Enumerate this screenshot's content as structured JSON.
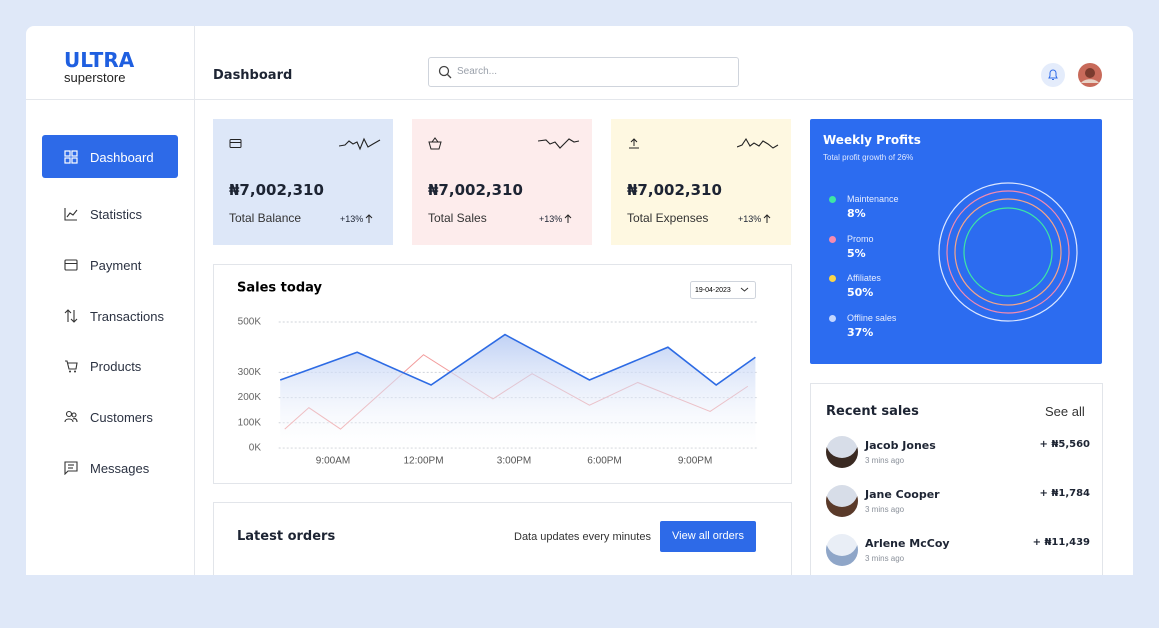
{
  "sidebar": {
    "brand": "ULTRA",
    "tagline": "superstore",
    "nav": [
      "Dashboard",
      "Statistics",
      "Payment",
      "Transactions",
      "Products",
      "Customers",
      "Messages"
    ]
  },
  "header": {
    "title": "Dashboard",
    "search_placeholder": "Search..."
  },
  "cards": [
    {
      "amount": "₦7,002,310",
      "label": "Total Balance",
      "change": "+13%"
    },
    {
      "amount": "₦7,002,310",
      "label": "Total Sales",
      "change": "+13%"
    },
    {
      "amount": "₦7,002,310",
      "label": "Total Expenses",
      "change": "+13%"
    }
  ],
  "chart_data": {
    "type": "line",
    "title": "Sales today",
    "date_filter": "19-04-2023",
    "xlim": [
      7.2,
      23
    ],
    "xticks": [
      {
        "value": 9,
        "label": "9:00AM"
      },
      {
        "value": 12,
        "label": "12:00PM"
      },
      {
        "value": 15,
        "label": "3:00PM"
      },
      {
        "value": 18,
        "label": "6:00PM"
      },
      {
        "value": 21,
        "label": "9:00PM"
      }
    ],
    "ylim": [
      0,
      500
    ],
    "yticks": [
      {
        "value": 0,
        "label": "0K"
      },
      {
        "value": 100,
        "label": "100K"
      },
      {
        "value": 200,
        "label": "200K"
      },
      {
        "value": 300,
        "label": "300K"
      },
      {
        "value": 500,
        "label": "500K"
      }
    ],
    "grid": true,
    "series": [
      {
        "color": "#2d6be4",
        "x": [
          7.25,
          9.8,
          12.25,
          14.7,
          17.5,
          20.1,
          21.7,
          23
        ],
        "values": [
          270,
          380,
          250,
          450,
          270,
          400,
          250,
          360
        ]
      },
      {
        "color": "#f29c9c",
        "x": [
          7.4,
          8.2,
          9.25,
          12.0,
          14.3,
          15.6,
          17.5,
          19.1,
          21.5,
          22.75
        ],
        "values": [
          75,
          160,
          75,
          370,
          195,
          295,
          170,
          260,
          145,
          245
        ]
      }
    ]
  },
  "profits": {
    "title": "Weekly Profits",
    "subtitle": "Total profit growth of 26%",
    "items": [
      {
        "label": "Maintenance",
        "value": "8%",
        "color": "#3ee6a4"
      },
      {
        "label": "Promo",
        "value": "5%",
        "color": "#f58bb0"
      },
      {
        "label": "Affiliates",
        "value": "50%",
        "color": "#f9d54a"
      },
      {
        "label": "Offline sales",
        "value": "37%",
        "color": "#c3d6ff"
      }
    ]
  },
  "recent_sales": {
    "title": "Recent sales",
    "link": "See all",
    "rows": [
      {
        "name": "Jacob Jones",
        "time": "3 mins ago",
        "amount": "+ ₦5,560"
      },
      {
        "name": "Jane Cooper",
        "time": "3 mins ago",
        "amount": "+ ₦1,784"
      },
      {
        "name": "Arlene McCoy",
        "time": "3 mins ago",
        "amount": "+ ₦11,439"
      }
    ]
  },
  "latest_orders": {
    "title": "Latest orders",
    "note": "Data updates every minutes",
    "button": "View all orders"
  }
}
